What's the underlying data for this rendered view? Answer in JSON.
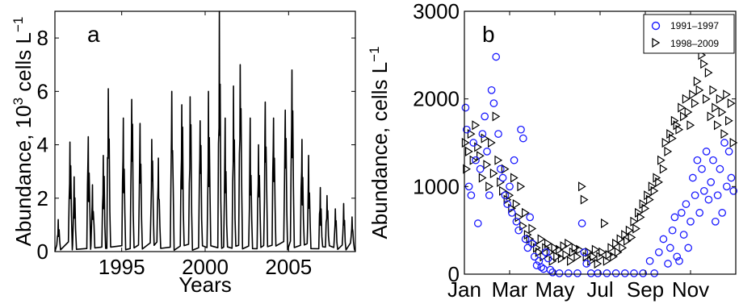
{
  "chart_data": [
    {
      "type": "line",
      "panel_label": "a",
      "xlabel": "Years",
      "ylabel_prefix": "Abundance, 10",
      "ylabel_exp": "3",
      "ylabel_suffix": " cells L",
      "ylabel_suffix_exp": "−1",
      "xlim": [
        1991,
        2009
      ],
      "ylim": [
        0,
        9
      ],
      "xticks": [
        1995,
        2000,
        2005
      ],
      "yticks": [
        0,
        2,
        4,
        6,
        8
      ],
      "series": [
        {
          "color": "#000000",
          "peaks": [
            {
              "x": 1991.2,
              "y": 1.2
            },
            {
              "x": 1991.9,
              "y": 4.1
            },
            {
              "x": 1992.15,
              "y": 2.8
            },
            {
              "x": 1993.0,
              "y": 4.3
            },
            {
              "x": 1993.25,
              "y": 2.5
            },
            {
              "x": 1993.9,
              "y": 3.6
            },
            {
              "x": 1994.2,
              "y": 6.1
            },
            {
              "x": 1995.1,
              "y": 5.0
            },
            {
              "x": 1995.6,
              "y": 5.7
            },
            {
              "x": 1996.1,
              "y": 4.8
            },
            {
              "x": 1996.8,
              "y": 4.2
            },
            {
              "x": 1997.2,
              "y": 3.5
            },
            {
              "x": 1998.0,
              "y": 6.0
            },
            {
              "x": 1998.6,
              "y": 5.5
            },
            {
              "x": 1999.1,
              "y": 5.8
            },
            {
              "x": 1999.7,
              "y": 4.9
            },
            {
              "x": 2000.2,
              "y": 6.0
            },
            {
              "x": 2000.85,
              "y": 9.0
            },
            {
              "x": 2001.2,
              "y": 5.0
            },
            {
              "x": 2001.7,
              "y": 6.2
            },
            {
              "x": 2002.1,
              "y": 7.0
            },
            {
              "x": 2002.7,
              "y": 5.0
            },
            {
              "x": 2003.2,
              "y": 4.0
            },
            {
              "x": 2003.6,
              "y": 5.6
            },
            {
              "x": 2004.1,
              "y": 5.0
            },
            {
              "x": 2004.8,
              "y": 5.3
            },
            {
              "x": 2005.2,
              "y": 6.8
            },
            {
              "x": 2005.8,
              "y": 4.2
            },
            {
              "x": 2006.2,
              "y": 3.6
            },
            {
              "x": 2006.9,
              "y": 2.4
            },
            {
              "x": 2007.3,
              "y": 2.1
            },
            {
              "x": 2007.8,
              "y": 1.6
            },
            {
              "x": 2008.3,
              "y": 1.8
            },
            {
              "x": 2008.8,
              "y": 1.3
            }
          ]
        }
      ]
    },
    {
      "type": "scatter",
      "panel_label": "b",
      "ylabel_prefix": "Abundance, cells L",
      "ylabel_exp": "−1",
      "xlim": [
        0,
        12
      ],
      "ylim": [
        0,
        3000
      ],
      "xticks": [
        {
          "x": 0.0,
          "label": "Jan"
        },
        {
          "x": 2.0,
          "label": "Mar"
        },
        {
          "x": 4.0,
          "label": "May"
        },
        {
          "x": 6.0,
          "label": "Jul"
        },
        {
          "x": 8.0,
          "label": "Sep"
        },
        {
          "x": 10.0,
          "label": "Nov"
        }
      ],
      "yticks": [
        0,
        1000,
        2000,
        3000
      ],
      "legend_position": "top-right",
      "series": [
        {
          "name": "1991–1997",
          "marker": "circle",
          "color": "#1a1aff",
          "points": [
            [
              0.05,
              1900
            ],
            [
              0.1,
              1650
            ],
            [
              0.2,
              1000
            ],
            [
              0.3,
              900
            ],
            [
              0.4,
              1500
            ],
            [
              0.5,
              1300
            ],
            [
              0.6,
              580
            ],
            [
              0.7,
              1200
            ],
            [
              0.8,
              1600
            ],
            [
              0.9,
              1800
            ],
            [
              1.0,
              1400
            ],
            [
              1.1,
              900
            ],
            [
              1.2,
              2100
            ],
            [
              1.3,
              1950
            ],
            [
              1.4,
              2480
            ],
            [
              1.5,
              1600
            ],
            [
              1.6,
              1200
            ],
            [
              1.7,
              1100
            ],
            [
              1.8,
              900
            ],
            [
              1.9,
              800
            ],
            [
              2.0,
              1000
            ],
            [
              2.1,
              700
            ],
            [
              2.2,
              1300
            ],
            [
              2.3,
              600
            ],
            [
              2.4,
              500
            ],
            [
              2.5,
              1650
            ],
            [
              2.6,
              1550
            ],
            [
              2.7,
              400
            ],
            [
              2.8,
              300
            ],
            [
              2.9,
              650
            ],
            [
              3.0,
              350
            ],
            [
              3.1,
              200
            ],
            [
              3.2,
              100
            ],
            [
              3.3,
              150
            ],
            [
              3.4,
              80
            ],
            [
              3.5,
              60
            ],
            [
              3.6,
              250
            ],
            [
              3.7,
              180
            ],
            [
              3.8,
              50
            ],
            [
              3.9,
              20
            ],
            [
              4.2,
              10
            ],
            [
              4.6,
              10
            ],
            [
              5.0,
              10
            ],
            [
              5.2,
              580
            ],
            [
              5.3,
              250
            ],
            [
              5.4,
              120
            ],
            [
              5.6,
              10
            ],
            [
              5.9,
              10
            ],
            [
              6.3,
              10
            ],
            [
              6.7,
              10
            ],
            [
              7.1,
              10
            ],
            [
              7.5,
              10
            ],
            [
              7.9,
              10
            ],
            [
              8.2,
              150
            ],
            [
              8.4,
              10
            ],
            [
              8.6,
              250
            ],
            [
              8.8,
              400
            ],
            [
              9.0,
              120
            ],
            [
              9.1,
              300
            ],
            [
              9.2,
              500
            ],
            [
              9.3,
              650
            ],
            [
              9.4,
              200
            ],
            [
              9.5,
              150
            ],
            [
              9.6,
              700
            ],
            [
              9.7,
              450
            ],
            [
              9.8,
              800
            ],
            [
              9.9,
              300
            ],
            [
              10.0,
              600
            ],
            [
              10.1,
              1100
            ],
            [
              10.2,
              900
            ],
            [
              10.3,
              1300
            ],
            [
              10.4,
              700
            ],
            [
              10.5,
              1200
            ],
            [
              10.6,
              950
            ],
            [
              10.7,
              1400
            ],
            [
              10.8,
              850
            ],
            [
              10.9,
              1050
            ],
            [
              11.0,
              1300
            ],
            [
              11.1,
              600
            ],
            [
              11.2,
              900
            ],
            [
              11.3,
              1200
            ],
            [
              11.4,
              700
            ],
            [
              11.5,
              1500
            ],
            [
              11.6,
              1000
            ],
            [
              11.7,
              1400
            ],
            [
              11.8,
              1100
            ],
            [
              11.9,
              950
            ]
          ]
        },
        {
          "name": "1998–2009",
          "marker": "triangle-right",
          "color": "#000000",
          "points": [
            [
              0.05,
              1500
            ],
            [
              0.1,
              1200
            ],
            [
              0.2,
              1400
            ],
            [
              0.3,
              1600
            ],
            [
              0.4,
              1300
            ],
            [
              0.5,
              1700
            ],
            [
              0.6,
              1450
            ],
            [
              0.7,
              1350
            ],
            [
              0.8,
              1100
            ],
            [
              0.9,
              1550
            ],
            [
              1.0,
              1250
            ],
            [
              1.1,
              1000
            ],
            [
              1.2,
              1500
            ],
            [
              1.3,
              1150
            ],
            [
              1.4,
              1800
            ],
            [
              1.5,
              1300
            ],
            [
              1.6,
              1050
            ],
            [
              1.7,
              950
            ],
            [
              1.8,
              1200
            ],
            [
              1.9,
              850
            ],
            [
              2.0,
              900
            ],
            [
              2.1,
              750
            ],
            [
              2.2,
              1100
            ],
            [
              2.3,
              800
            ],
            [
              2.4,
              650
            ],
            [
              2.5,
              1000
            ],
            [
              2.6,
              550
            ],
            [
              2.7,
              700
            ],
            [
              2.8,
              450
            ],
            [
              2.9,
              400
            ],
            [
              3.0,
              520
            ],
            [
              3.1,
              350
            ],
            [
              3.2,
              300
            ],
            [
              3.3,
              250
            ],
            [
              3.4,
              400
            ],
            [
              3.5,
              200
            ],
            [
              3.6,
              300
            ],
            [
              3.7,
              350
            ],
            [
              3.8,
              250
            ],
            [
              3.9,
              150
            ],
            [
              4.0,
              300
            ],
            [
              4.1,
              200
            ],
            [
              4.2,
              280
            ],
            [
              4.3,
              180
            ],
            [
              4.4,
              320
            ],
            [
              4.5,
              220
            ],
            [
              4.6,
              350
            ],
            [
              4.7,
              150
            ],
            [
              4.8,
              250
            ],
            [
              4.9,
              300
            ],
            [
              5.0,
              200
            ],
            [
              5.1,
              280
            ],
            [
              5.2,
              1000
            ],
            [
              5.3,
              850
            ],
            [
              5.4,
              200
            ],
            [
              5.5,
              250
            ],
            [
              5.6,
              150
            ],
            [
              5.7,
              200
            ],
            [
              5.8,
              280
            ],
            [
              5.9,
              120
            ],
            [
              6.0,
              200
            ],
            [
              6.1,
              250
            ],
            [
              6.2,
              580
            ],
            [
              6.3,
              150
            ],
            [
              6.4,
              220
            ],
            [
              6.5,
              300
            ],
            [
              6.6,
              200
            ],
            [
              6.7,
              350
            ],
            [
              6.8,
              250
            ],
            [
              6.9,
              400
            ],
            [
              7.0,
              300
            ],
            [
              7.1,
              450
            ],
            [
              7.2,
              380
            ],
            [
              7.3,
              500
            ],
            [
              7.4,
              420
            ],
            [
              7.5,
              600
            ],
            [
              7.6,
              520
            ],
            [
              7.7,
              700
            ],
            [
              7.8,
              650
            ],
            [
              7.9,
              800
            ],
            [
              8.0,
              750
            ],
            [
              8.1,
              900
            ],
            [
              8.2,
              850
            ],
            [
              8.3,
              1000
            ],
            [
              8.4,
              950
            ],
            [
              8.5,
              1100
            ],
            [
              8.6,
              1050
            ],
            [
              8.7,
              1300
            ],
            [
              8.8,
              1200
            ],
            [
              8.9,
              1500
            ],
            [
              9.0,
              1400
            ],
            [
              9.1,
              1600
            ],
            [
              9.2,
              1550
            ],
            [
              9.3,
              1750
            ],
            [
              9.4,
              1700
            ],
            [
              9.5,
              1650
            ],
            [
              9.6,
              1900
            ],
            [
              9.7,
              1800
            ],
            [
              9.8,
              2000
            ],
            [
              9.9,
              1850
            ],
            [
              10.0,
              1700
            ],
            [
              10.1,
              2050
            ],
            [
              10.2,
              1950
            ],
            [
              10.3,
              2200
            ],
            [
              10.4,
              2100
            ],
            [
              10.5,
              2500
            ],
            [
              10.6,
              2400
            ],
            [
              10.7,
              2000
            ],
            [
              10.8,
              2300
            ],
            [
              10.9,
              1800
            ],
            [
              11.0,
              2100
            ],
            [
              11.1,
              1900
            ],
            [
              11.2,
              1700
            ],
            [
              11.3,
              2000
            ],
            [
              11.4,
              1850
            ],
            [
              11.5,
              1600
            ],
            [
              11.6,
              2050
            ],
            [
              11.7,
              1750
            ],
            [
              11.8,
              1950
            ],
            [
              11.9,
              1500
            ]
          ]
        }
      ]
    }
  ]
}
